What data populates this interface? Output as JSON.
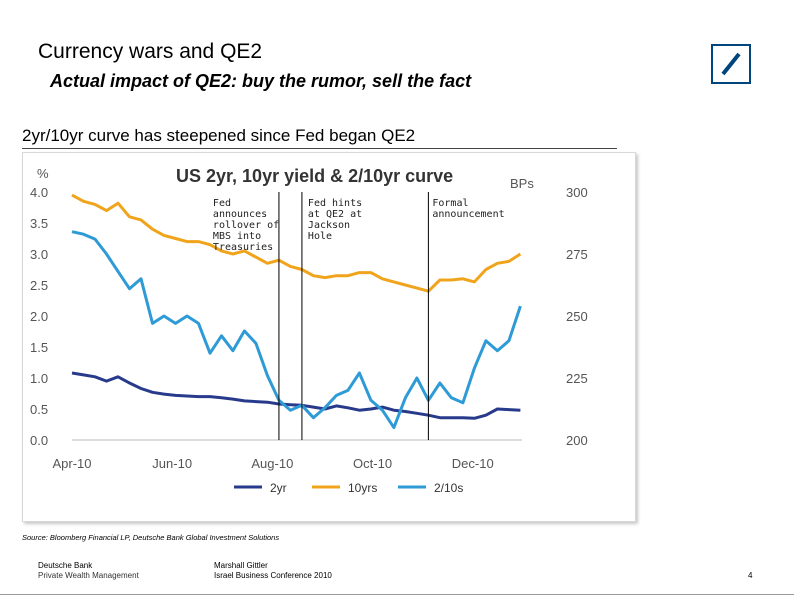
{
  "header": {
    "title": "Currency wars and QE2",
    "subtitle": "Actual impact of QE2:  buy the rumor, sell the fact",
    "logo_color": "#00457c"
  },
  "section": {
    "heading": "2yr/10yr curve has steepened since Fed began QE2"
  },
  "chart_data": {
    "type": "line",
    "title": "US 2yr, 10yr yield & 2/10yr curve",
    "ylabel_left": "%",
    "ylabel_right": "BPs",
    "ylim_left": [
      0,
      4
    ],
    "ylim_right": [
      200,
      300
    ],
    "yticks_left": [
      "4.0",
      "3.5",
      "3.0",
      "2.5",
      "2.0",
      "1.5",
      "1.0",
      "0.5",
      "0.0"
    ],
    "yticks_right": [
      "300",
      "275",
      "250",
      "225",
      "200"
    ],
    "xticks": [
      "Apr-10",
      "Jun-10",
      "Aug-10",
      "Oct-10",
      "Dec-10"
    ],
    "x_start": "2010-04-01",
    "x_end": "2010-12-31",
    "series": [
      {
        "name": "2yr",
        "axis": "left",
        "color": "#283a8c",
        "x": [
          0,
          7,
          14,
          21,
          28,
          35,
          42,
          49,
          56,
          63,
          70,
          77,
          84,
          91,
          98,
          105,
          112,
          119,
          126,
          133,
          140,
          147,
          154,
          161,
          168,
          175,
          182,
          189,
          196,
          203,
          210,
          217,
          224,
          231,
          238,
          245,
          252,
          259,
          266,
          273
        ],
        "values": [
          1.08,
          1.05,
          1.02,
          0.95,
          1.02,
          0.92,
          0.83,
          0.77,
          0.74,
          0.72,
          0.71,
          0.7,
          0.7,
          0.68,
          0.66,
          0.63,
          0.62,
          0.61,
          0.58,
          0.57,
          0.56,
          0.53,
          0.5,
          0.55,
          0.52,
          0.48,
          0.5,
          0.53,
          0.48,
          0.46,
          0.43,
          0.4,
          0.36,
          0.36,
          0.36,
          0.35,
          0.4,
          0.5,
          0.49,
          0.48
        ]
      },
      {
        "name": "10yrs",
        "axis": "left",
        "color": "#f0a41c",
        "x": [
          0,
          7,
          14,
          21,
          28,
          35,
          42,
          49,
          56,
          63,
          70,
          77,
          84,
          91,
          98,
          105,
          112,
          119,
          126,
          133,
          140,
          147,
          154,
          161,
          168,
          175,
          182,
          189,
          196,
          203,
          210,
          217,
          224,
          231,
          238,
          245,
          252,
          259,
          266,
          273
        ],
        "values": [
          3.95,
          3.85,
          3.8,
          3.7,
          3.82,
          3.6,
          3.55,
          3.4,
          3.3,
          3.25,
          3.2,
          3.2,
          3.15,
          3.05,
          3.0,
          3.05,
          2.95,
          2.85,
          2.9,
          2.8,
          2.75,
          2.65,
          2.62,
          2.65,
          2.65,
          2.7,
          2.7,
          2.6,
          2.55,
          2.5,
          2.45,
          2.4,
          2.58,
          2.58,
          2.6,
          2.55,
          2.75,
          2.85,
          2.88,
          3.0
        ]
      },
      {
        "name": "2/10s",
        "axis": "right",
        "color": "#2e9ad6",
        "x": [
          0,
          7,
          14,
          21,
          28,
          35,
          42,
          49,
          56,
          63,
          70,
          77,
          84,
          91,
          98,
          105,
          112,
          119,
          126,
          133,
          140,
          147,
          154,
          161,
          168,
          175,
          182,
          189,
          196,
          203,
          210,
          217,
          224,
          231,
          238,
          245,
          252,
          259,
          266,
          273
        ],
        "values": [
          284,
          283,
          281,
          275,
          268,
          261,
          265,
          247,
          250,
          247,
          250,
          247,
          235,
          242,
          236,
          244,
          239,
          226,
          216,
          212,
          214,
          209,
          213,
          218,
          220,
          227,
          216,
          212,
          205,
          217,
          225,
          216,
          223,
          217,
          215,
          229,
          240,
          236,
          240,
          254
        ]
      }
    ],
    "event_lines": [
      {
        "x": 126,
        "label": "Fed announces rollover of MBS into Treasuries"
      },
      {
        "x": 140,
        "label": "Fed hints at QE2 at Jackson Hole"
      },
      {
        "x": 217,
        "label": "Formal announcement"
      }
    ],
    "legend": [
      "2yr",
      "10yrs",
      "2/10s"
    ]
  },
  "source": "Source: Bloomberg Financial LP, Deutsche Bank Global Investment Solutions",
  "footer": {
    "company": "Deutsche Bank",
    "division": "Private Wealth Management",
    "author": "Marshall Gittler",
    "event": "Israel Business Conference  2010",
    "page": "4"
  }
}
